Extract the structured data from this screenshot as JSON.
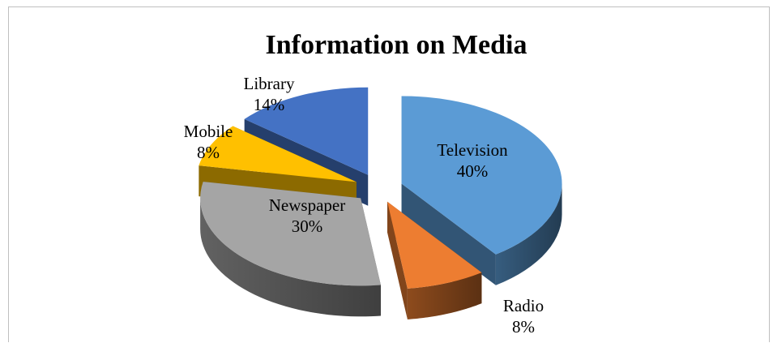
{
  "chart_data": {
    "type": "pie",
    "title": "Information on Media",
    "style": "3d-exploded",
    "categories": [
      "Television",
      "Radio",
      "Newspaper",
      "Mobile",
      "Library"
    ],
    "values": [
      40,
      8,
      30,
      8,
      14
    ],
    "value_labels": [
      "40%",
      "8%",
      "30%",
      "8%",
      "14%"
    ],
    "colors": [
      "#5b9bd5",
      "#ed7d31",
      "#a5a5a5",
      "#ffc000",
      "#4472c4"
    ],
    "label_colors": [
      "#000000",
      "#000000",
      "#000000",
      "#000000",
      "#000000"
    ]
  }
}
